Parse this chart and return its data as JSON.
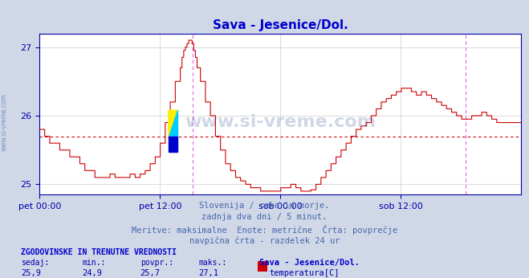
{
  "title": "Sava - Jesenice/Dol.",
  "title_color": "#0000cc",
  "bg_color": "#d0d8e8",
  "plot_bg_color": "#ffffff",
  "line_color": "#cc0000",
  "grid_color": "#cccccc",
  "avg_line_color": "#cc0000",
  "avg_line_value": 25.7,
  "vline_color": "#dd66dd",
  "vline_positions": [
    0.635,
    1.77
  ],
  "ylim": [
    24.85,
    27.2
  ],
  "yticks": [
    25,
    26,
    27
  ],
  "tick_label_color": "#0000aa",
  "xtick_labels": [
    "pet 00:00",
    "pet 12:00",
    "sob 00:00",
    "sob 12:00"
  ],
  "xtick_positions": [
    0.0,
    0.5,
    1.0,
    1.5
  ],
  "text_lines": [
    "Slovenija / reke in morje.",
    "zadnja dva dni / 5 minut.",
    "Meritve: maksimalne  Enote: metrične  Črta: povprečje",
    "navpična črta - razdelek 24 ur"
  ],
  "text_color": "#4466aa",
  "footer_bold_text": "ZGODOVINSKE IN TRENUTNE VREDNOSTI",
  "footer_bold_color": "#0000cc",
  "footer_labels": [
    "sedaj:",
    "min.:",
    "povpr.:",
    "maks.:",
    "Sava - Jesenice/Dol."
  ],
  "footer_values": [
    "25,9",
    "24,9",
    "25,7",
    "27,1"
  ],
  "footer_legend_label": "temperatura[C]",
  "footer_legend_color": "#cc0000",
  "watermark": "www.si-vreme.com",
  "watermark_color": "#1a3a8a",
  "left_watermark": "www.si-vreme.com",
  "left_watermark_color": "#6080aa"
}
